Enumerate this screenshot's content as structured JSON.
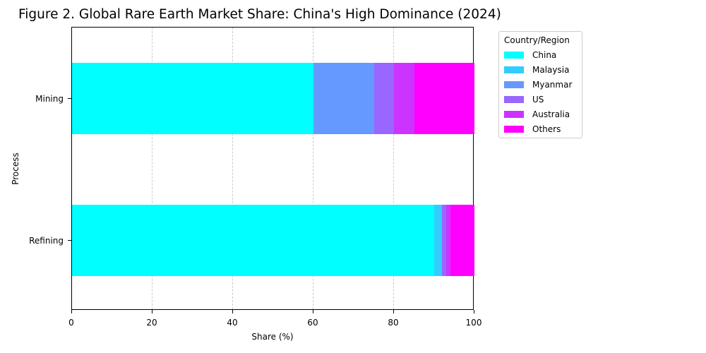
{
  "chart_data": {
    "type": "bar",
    "orientation": "horizontal",
    "stacked": true,
    "title": "Figure 2. Global Rare Earth Market Share: China's High Dominance (2024)",
    "xlabel": "Share (%)",
    "ylabel": "Process",
    "xlim": [
      0,
      100
    ],
    "xticks": [
      "0",
      "20",
      "40",
      "60",
      "80",
      "100"
    ],
    "categories": [
      "Mining",
      "Refining"
    ],
    "grid": {
      "x": true,
      "y": false,
      "style": "dashed"
    },
    "legend": {
      "title": "Country/Region",
      "position": "outside-right-top"
    },
    "series": [
      {
        "name": "China",
        "color": "#00ffff",
        "values": [
          60,
          90
        ]
      },
      {
        "name": "Malaysia",
        "color": "#33ccff",
        "values": [
          0,
          2
        ]
      },
      {
        "name": "Myanmar",
        "color": "#6699ff",
        "values": [
          15,
          0
        ]
      },
      {
        "name": "US",
        "color": "#9966ff",
        "values": [
          5,
          1
        ]
      },
      {
        "name": "Australia",
        "color": "#cc33ff",
        "values": [
          5,
          1
        ]
      },
      {
        "name": "Others",
        "color": "#ff00ff",
        "values": [
          15,
          6
        ]
      }
    ]
  }
}
